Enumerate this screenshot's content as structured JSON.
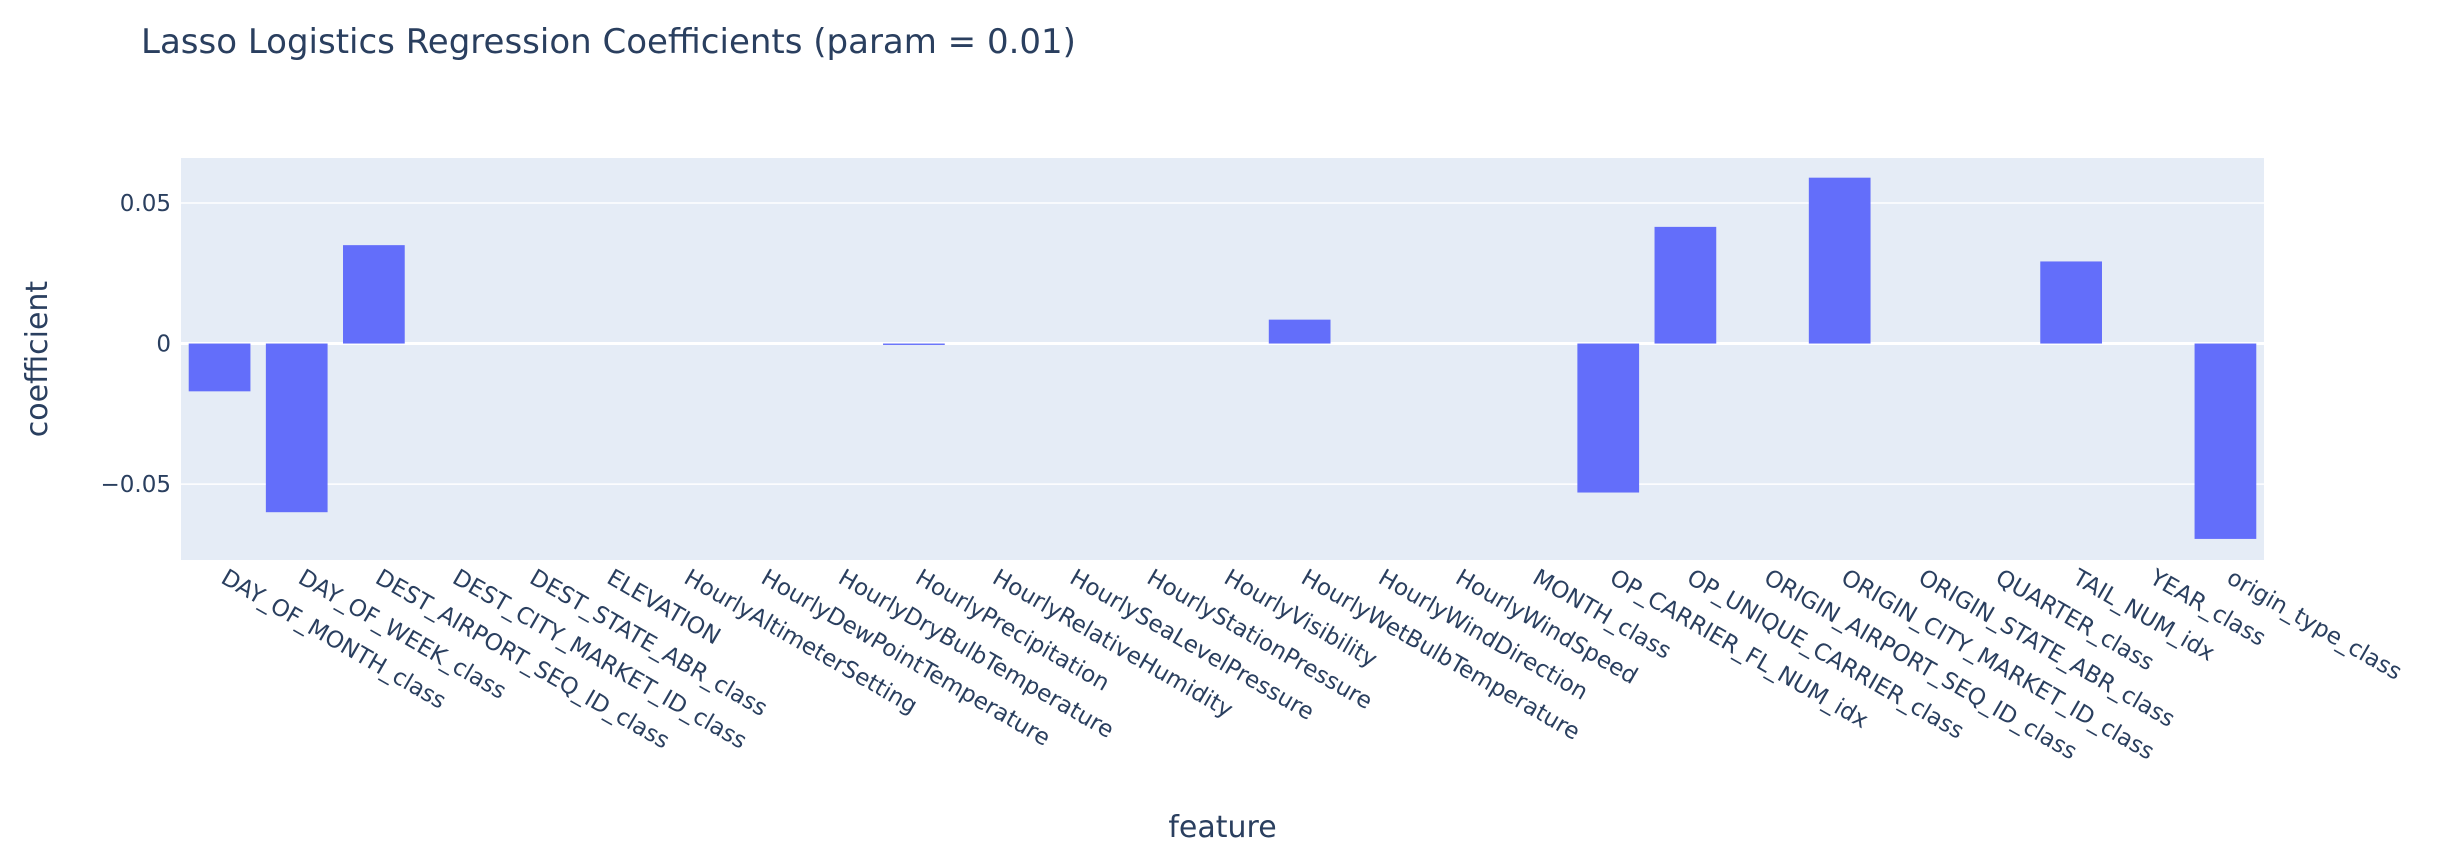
{
  "chart_data": {
    "type": "bar",
    "title": "Lasso Logistics Regression Coefficients (param = 0.01)",
    "xlabel": "feature",
    "ylabel": "coefficient",
    "ylim": [
      -0.077,
      0.066
    ],
    "yticks": [
      {
        "value": 0.05,
        "label": "0.05"
      },
      {
        "value": 0,
        "label": "0"
      },
      {
        "value": -0.05,
        "label": "−0.05"
      }
    ],
    "categories": [
      "DAY_OF_MONTH_class",
      "DAY_OF_WEEK_class",
      "DEST_AIRPORT_SEQ_ID_class",
      "DEST_CITY_MARKET_ID_class",
      "DEST_STATE_ABR_class",
      "ELEVATION",
      "HourlyAltimeterSetting",
      "HourlyDewPointTemperature",
      "HourlyDryBulbTemperature",
      "HourlyPrecipitation",
      "HourlyRelativeHumidity",
      "HourlySeaLevelPressure",
      "HourlyStationPressure",
      "HourlyVisibility",
      "HourlyWetBulbTemperature",
      "HourlyWindDirection",
      "HourlyWindSpeed",
      "MONTH_class",
      "OP_CARRIER_FL_NUM_idx",
      "OP_UNIQUE_CARRIER_class",
      "ORIGIN_AIRPORT_SEQ_ID_class",
      "ORIGIN_CITY_MARKET_ID_class",
      "ORIGIN_STATE_ABR_class",
      "QUARTER_class",
      "TAIL_NUM_idx",
      "YEAR_class",
      "origin_type_class"
    ],
    "values": [
      -0.017,
      -0.06,
      0.035,
      0,
      0,
      0,
      0,
      0,
      0,
      -0.0005,
      0,
      0,
      0,
      0,
      0.0085,
      0,
      0,
      0,
      -0.053,
      0.0415,
      0,
      0.059,
      0,
      0,
      0.0292,
      0,
      -0.0695
    ],
    "bar_color": "#636efa",
    "plot_bg_color": "#e5ecf6",
    "grid": true,
    "legend": false
  }
}
